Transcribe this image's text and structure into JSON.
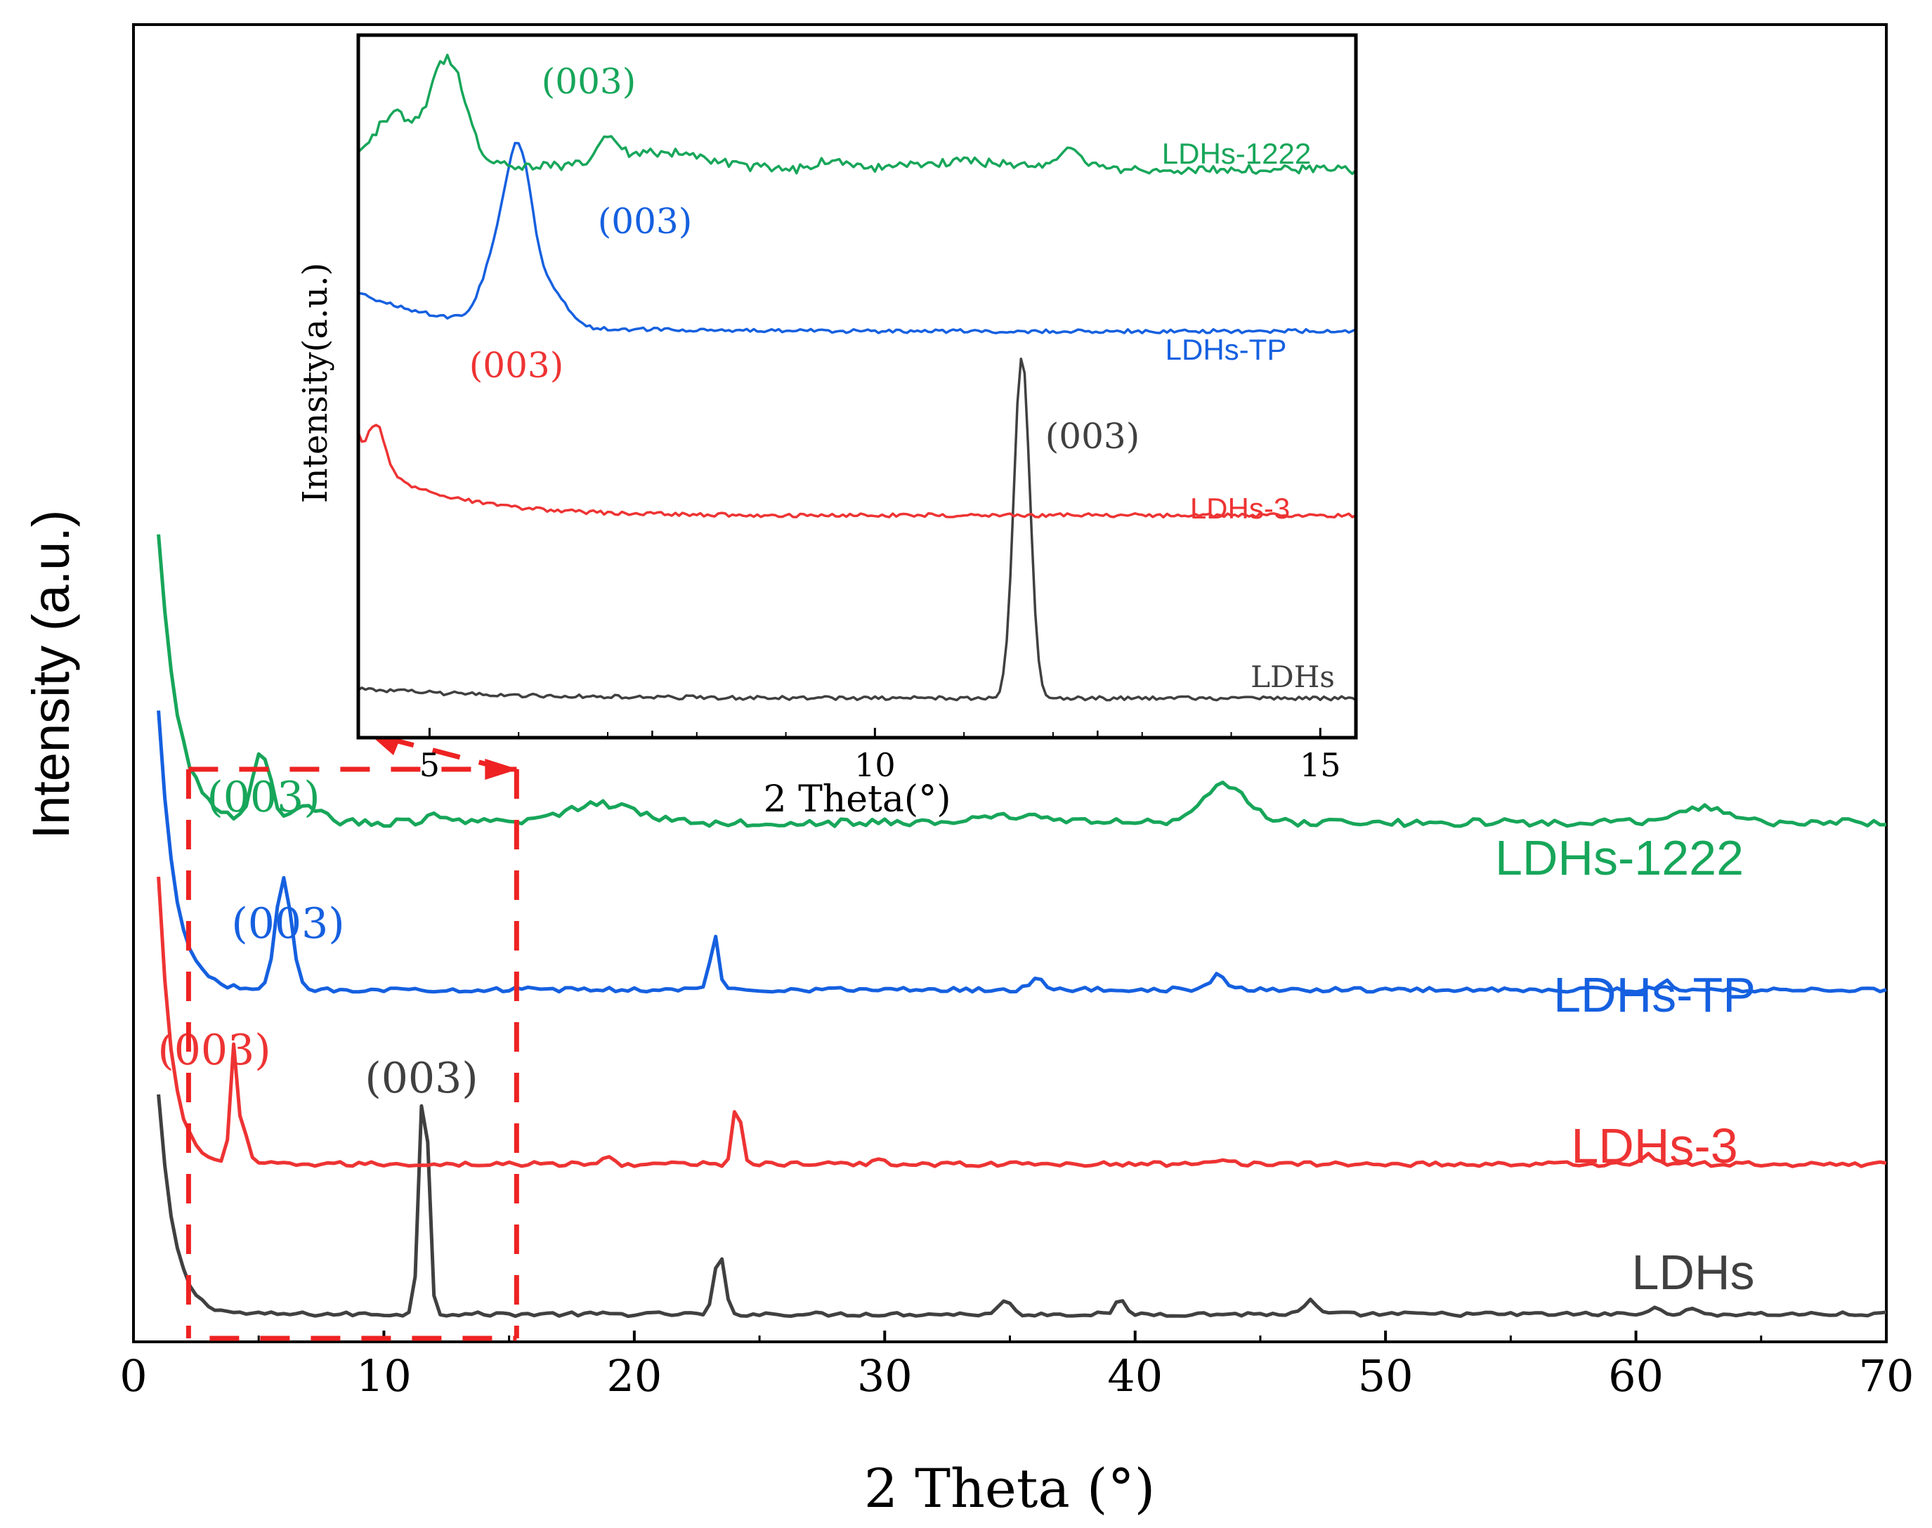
{
  "colors": {
    "LDHs": "#404040",
    "LDHs-3": "#ee3333",
    "LDHs-TP": "#1560e0",
    "LDHs-1222": "#17a65a",
    "axis": "#000000",
    "box": "#ee2222"
  },
  "chart_data": [
    {
      "type": "line",
      "title": "",
      "xlabel": "2 Theta (°)",
      "ylabel": "Intensity (a.u.)",
      "xlim": [
        0,
        70
      ],
      "xticks": [
        "0",
        "10",
        "20",
        "30",
        "40",
        "50",
        "60",
        "70"
      ],
      "ylim": [
        0,
        1
      ],
      "grid": false,
      "x_sampling": {
        "start": 1,
        "end": 70,
        "step": 0.25
      },
      "series": [
        {
          "name": "LDHs",
          "color_key": "LDHs",
          "offset": 0.012,
          "noise": 0.0025,
          "background": {
            "amp": 0.26,
            "decay": 0.62
          },
          "peaks": [
            [
              11.6,
              0.29,
              0.18
            ],
            [
              23.4,
              0.072,
              0.2
            ],
            [
              34.8,
              0.018,
              0.22
            ],
            [
              39.4,
              0.015,
              0.22
            ],
            [
              47.0,
              0.016,
              0.24
            ],
            [
              60.8,
              0.006,
              0.3
            ],
            [
              62.1,
              0.005,
              0.3
            ]
          ],
          "label": "LDHs",
          "peak_annotation": {
            "text": "(003)",
            "x": 11.6
          }
        },
        {
          "name": "LDHs-3",
          "color_key": "LDHs-3",
          "offset": 0.19,
          "noise": 0.0028,
          "background": {
            "amp": 0.34,
            "decay": 0.55
          },
          "peaks": [
            [
              4.0,
              0.135,
              0.14
            ],
            [
              4.4,
              0.035,
              0.2
            ],
            [
              18.9,
              0.008,
              0.2
            ],
            [
              24.1,
              0.078,
              0.16
            ],
            [
              29.8,
              0.008,
              0.2
            ],
            [
              43.3,
              0.005,
              0.6
            ],
            [
              60.5,
              0.014,
              0.22
            ]
          ],
          "label": "LDHs-3",
          "peak_annotation": {
            "text": "(003)",
            "x": 4.0
          }
        },
        {
          "name": "LDHs-TP",
          "color_key": "LDHs-TP",
          "offset": 0.397,
          "noise": 0.0028,
          "background": {
            "amp": 0.33,
            "decay": 0.65
          },
          "peaks": [
            [
              6.0,
              0.135,
              0.3
            ],
            [
              23.2,
              0.065,
              0.17
            ],
            [
              36.1,
              0.014,
              0.28
            ],
            [
              43.3,
              0.017,
              0.3
            ],
            [
              61.2,
              0.012,
              0.22
            ]
          ],
          "label": "LDHs-TP",
          "peak_annotation": {
            "text": "(003)",
            "x": 6.0
          }
        },
        {
          "name": "LDHs-1222",
          "color_key": "LDHs-1222",
          "offset": 0.595,
          "noise": 0.0045,
          "background": {
            "amp": 0.34,
            "decay": 0.78
          },
          "peaks": [
            [
              5.1,
              0.085,
              0.35
            ],
            [
              6.9,
              0.02,
              0.6
            ],
            [
              12.1,
              0.012,
              0.25
            ],
            [
              18.7,
              0.022,
              1.5
            ],
            [
              35.5,
              0.008,
              1.5
            ],
            [
              43.5,
              0.045,
              0.9
            ],
            [
              62.8,
              0.018,
              1.0
            ]
          ],
          "label": "LDHs-1222",
          "peak_annotation": {
            "text": "(003)",
            "x": 5.1
          }
        }
      ],
      "zoom_region": {
        "xmin": 2.2,
        "xmax": 15.3
      }
    },
    {
      "type": "line",
      "title": "",
      "xlabel": "2 Theta(°)",
      "ylabel": "Intensity(a.u.)",
      "xlim": [
        4.2,
        15.4
      ],
      "xticks": [
        "5",
        "10",
        "15"
      ],
      "grid": false,
      "x_sampling": {
        "start": 4.2,
        "end": 15.4,
        "step": 0.04
      },
      "series": [
        {
          "name": "LDHs",
          "color_key": "LDHs",
          "offset": 0.012,
          "noise": 0.003,
          "background": {
            "amp": 0.015,
            "decay": 1.5
          },
          "peaks": [
            [
              11.65,
              0.53,
              0.09
            ]
          ],
          "label": "LDHs",
          "peak_annotation": {
            "text": "(003)",
            "x": 11.65
          }
        },
        {
          "name": "LDHs-3",
          "color_key": "LDHs-3",
          "offset": 0.295,
          "noise": 0.003,
          "background": {
            "amp": 0.09,
            "decay": 0.9
          },
          "peaks": [
            [
              4.05,
              0.3,
              0.07
            ],
            [
              4.4,
              0.07,
              0.1
            ]
          ],
          "label": "LDHs-3",
          "peak_annotation": {
            "text": "(003)",
            "x": 4.05
          }
        },
        {
          "name": "LDHs-TP",
          "color_key": "LDHs-TP",
          "offset": 0.58,
          "noise": 0.003,
          "background": {
            "amp": 0.06,
            "decay": 1.0
          },
          "peaks": [
            [
              6.0,
              0.27,
              0.16
            ],
            [
              5.7,
              0.07,
              0.15
            ],
            [
              6.4,
              0.05,
              0.15
            ]
          ],
          "label": "LDHs-TP",
          "peak_annotation": {
            "text": "(003)",
            "x": 6.0
          }
        },
        {
          "name": "LDHs-1222",
          "color_key": "LDHs-1222",
          "offset": 0.83,
          "noise": 0.007,
          "background": {
            "amp": 0.02,
            "decay": 1.5
          },
          "peaks": [
            [
              5.2,
              0.16,
              0.2
            ],
            [
              4.6,
              0.07,
              0.2
            ],
            [
              7.0,
              0.035,
              0.12
            ],
            [
              7.6,
              0.025,
              0.5
            ],
            [
              9.5,
              0.015,
              0.12
            ],
            [
              12.2,
              0.03,
              0.14
            ],
            [
              11.0,
              0.012,
              0.6
            ]
          ],
          "label": "LDHs-1222",
          "peak_annotation": {
            "text": "(003)",
            "x": 5.2
          }
        }
      ]
    }
  ]
}
